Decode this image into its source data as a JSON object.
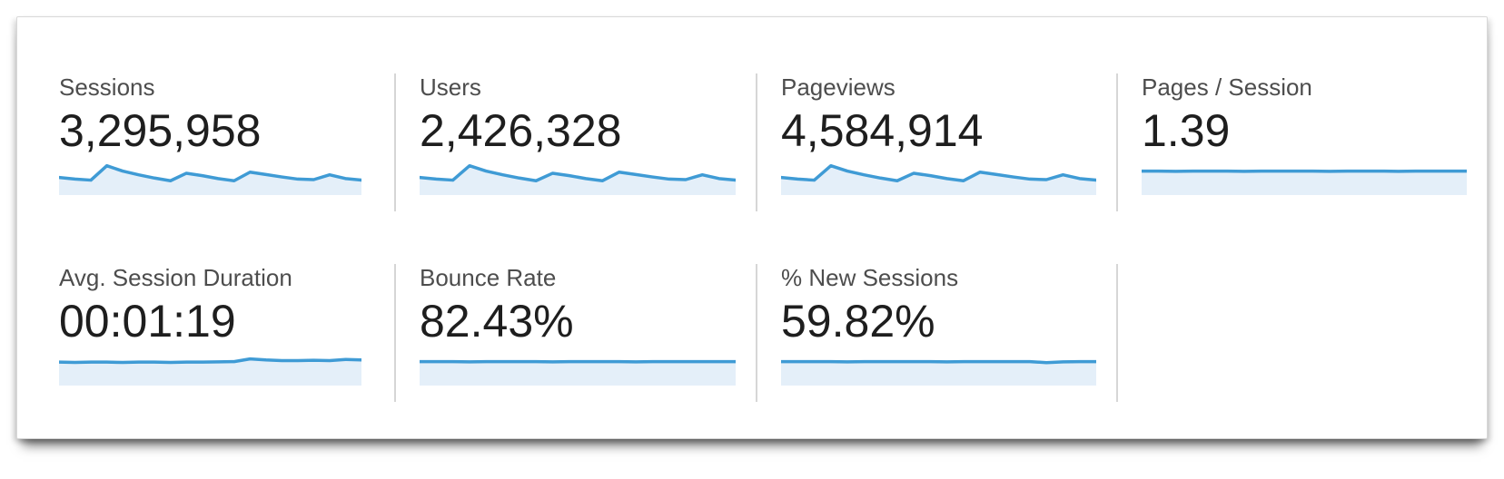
{
  "cards": [
    {
      "label": "Sessions",
      "value": "3,295,958"
    },
    {
      "label": "Users",
      "value": "2,426,328"
    },
    {
      "label": "Pageviews",
      "value": "4,584,914"
    },
    {
      "label": "Pages / Session",
      "value": "1.39"
    },
    {
      "label": "Avg. Session Duration",
      "value": "00:01:19"
    },
    {
      "label": "Bounce Rate",
      "value": "82.43%"
    },
    {
      "label": "% New Sessions",
      "value": "59.82%"
    }
  ],
  "colors": {
    "spark_line": "#3f9bd5",
    "spark_fill": "#e4eff9",
    "label_text": "#4d4d4d",
    "value_text": "#1e1e1e",
    "divider": "#d6d6d6"
  },
  "chart_data": {
    "type": "area",
    "title": "Metric sparklines (unlabeled mini trend charts, values normalized 0-1)",
    "x": [
      0,
      1,
      2,
      3,
      4,
      5,
      6,
      7,
      8,
      9,
      10,
      11,
      12,
      13,
      14,
      15,
      16,
      17,
      18,
      19
    ],
    "ylim": [
      0,
      1
    ],
    "grid": false,
    "legend": false,
    "series": [
      {
        "name": "Sessions",
        "values": [
          0.56,
          0.5,
          0.46,
          1.0,
          0.8,
          0.66,
          0.54,
          0.44,
          0.72,
          0.63,
          0.52,
          0.44,
          0.76,
          0.67,
          0.58,
          0.5,
          0.48,
          0.66,
          0.52,
          0.46
        ]
      },
      {
        "name": "Users",
        "values": [
          0.56,
          0.5,
          0.46,
          1.0,
          0.8,
          0.66,
          0.54,
          0.44,
          0.72,
          0.63,
          0.52,
          0.44,
          0.76,
          0.67,
          0.58,
          0.5,
          0.48,
          0.66,
          0.52,
          0.46
        ]
      },
      {
        "name": "Pageviews",
        "values": [
          0.56,
          0.5,
          0.46,
          1.0,
          0.8,
          0.66,
          0.54,
          0.44,
          0.72,
          0.63,
          0.52,
          0.44,
          0.76,
          0.67,
          0.58,
          0.5,
          0.48,
          0.66,
          0.52,
          0.46
        ]
      },
      {
        "name": "Pages / Session",
        "values": [
          0.8,
          0.8,
          0.79,
          0.8,
          0.8,
          0.8,
          0.79,
          0.8,
          0.8,
          0.8,
          0.8,
          0.79,
          0.8,
          0.8,
          0.8,
          0.79,
          0.8,
          0.8,
          0.8,
          0.8
        ]
      },
      {
        "name": "Avg. Session Duration",
        "values": [
          0.78,
          0.77,
          0.78,
          0.78,
          0.77,
          0.78,
          0.78,
          0.77,
          0.78,
          0.78,
          0.79,
          0.8,
          0.9,
          0.86,
          0.84,
          0.84,
          0.85,
          0.84,
          0.88,
          0.86
        ]
      },
      {
        "name": "Bounce Rate",
        "values": [
          0.8,
          0.8,
          0.8,
          0.79,
          0.8,
          0.8,
          0.8,
          0.8,
          0.79,
          0.8,
          0.8,
          0.8,
          0.8,
          0.79,
          0.8,
          0.8,
          0.8,
          0.8,
          0.8,
          0.8
        ]
      },
      {
        "name": "% New Sessions",
        "values": [
          0.8,
          0.8,
          0.8,
          0.8,
          0.79,
          0.8,
          0.8,
          0.8,
          0.8,
          0.8,
          0.79,
          0.8,
          0.8,
          0.8,
          0.8,
          0.8,
          0.76,
          0.79,
          0.8,
          0.8
        ]
      }
    ]
  }
}
